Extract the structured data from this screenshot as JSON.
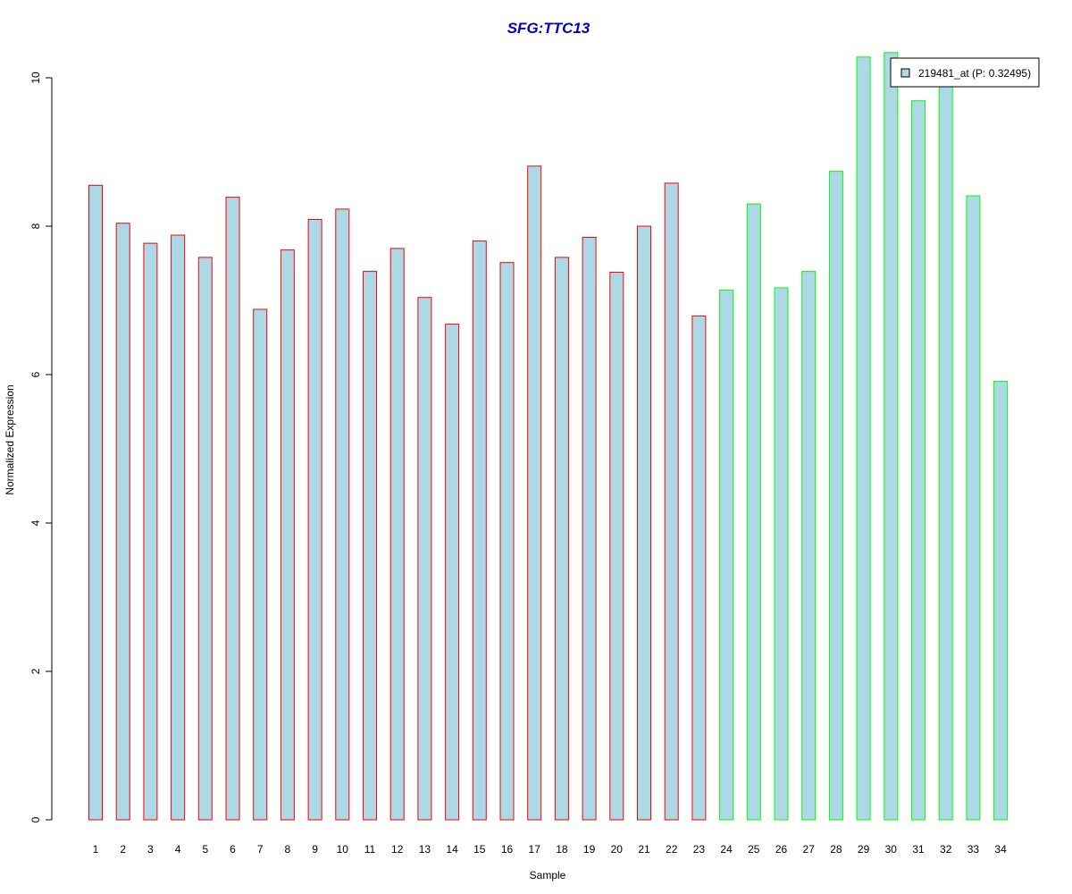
{
  "chart_data": {
    "type": "bar",
    "title": "SFG:TTC13",
    "xlabel": "Sample",
    "ylabel": "Normalized Expression",
    "categories": [
      "1",
      "2",
      "3",
      "4",
      "5",
      "6",
      "7",
      "8",
      "9",
      "10",
      "11",
      "12",
      "13",
      "14",
      "15",
      "16",
      "17",
      "18",
      "19",
      "20",
      "21",
      "22",
      "23",
      "24",
      "25",
      "26",
      "27",
      "28",
      "29",
      "30",
      "31",
      "32",
      "33",
      "34"
    ],
    "series": [
      {
        "name": "219481_at (P: 0.32495)",
        "values": [
          8.55,
          8.04,
          7.77,
          7.88,
          7.58,
          8.39,
          6.88,
          7.68,
          8.09,
          8.23,
          7.39,
          7.7,
          7.04,
          6.68,
          7.8,
          7.51,
          8.81,
          7.58,
          7.85,
          7.38,
          8.0,
          8.58,
          6.79,
          7.14,
          8.3,
          7.17,
          7.39,
          8.74,
          10.28,
          10.34,
          9.69,
          9.98,
          8.41,
          5.91
        ]
      }
    ],
    "ylim": [
      0,
      10.5
    ],
    "yticks": [
      0,
      2,
      4,
      6,
      8,
      10
    ],
    "grid": false,
    "legend_position": "top-right",
    "colors": {
      "fill": "#add8e6",
      "group1_border": "#ff0000",
      "group2_border": "#00ff00",
      "title": "#0000cd"
    },
    "group_border_by_index": [
      "group1",
      "group1",
      "group1",
      "group1",
      "group1",
      "group1",
      "group1",
      "group1",
      "group1",
      "group1",
      "group1",
      "group1",
      "group1",
      "group1",
      "group1",
      "group1",
      "group1",
      "group1",
      "group1",
      "group1",
      "group1",
      "group1",
      "group1",
      "group2",
      "group2",
      "group2",
      "group2",
      "group2",
      "group2",
      "group2",
      "group2",
      "group2",
      "group2",
      "group2"
    ]
  }
}
